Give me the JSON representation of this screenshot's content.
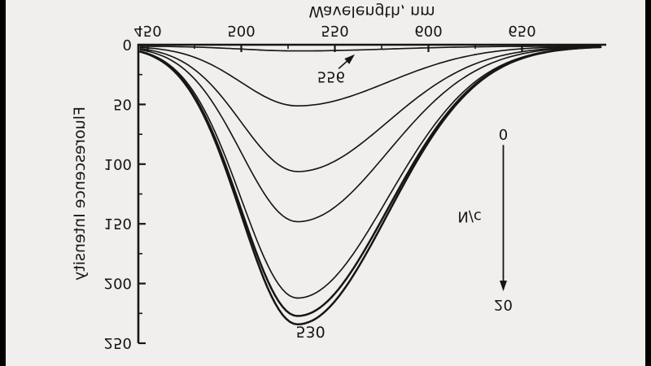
{
  "figure": {
    "background": "#f0efed",
    "ink": "#161616",
    "letterbox": "#000000"
  },
  "chart_data": {
    "type": "line",
    "title": "",
    "xlabel": "Wavelength, nm",
    "ylabel": "Fluorescence Intensity",
    "xlim": [
      445,
      695
    ],
    "ylim": [
      0,
      250
    ],
    "x_ticks": [
      450,
      500,
      550,
      600,
      650
    ],
    "x_minor_step": 25,
    "y_ticks": [
      0,
      50,
      100,
      150,
      200,
      250
    ],
    "y_minor_step": 25,
    "grid": false,
    "legend": false,
    "model": {
      "shape": "asymmetric-gaussian",
      "center_nm": 530,
      "sigma_left_nm": 30,
      "sigma_right_nm": 48,
      "baseline": 1.2
    },
    "series": [
      {
        "peak_intensity": 4
      },
      {
        "peak_intensity": 50
      },
      {
        "peak_intensity": 105
      },
      {
        "peak_intensity": 147
      },
      {
        "peak_intensity": 211
      },
      {
        "peak_intensity": 226
      },
      {
        "peak_intensity": 233
      }
    ],
    "annotations": {
      "peak_label": {
        "text": "530",
        "x_nm": 537,
        "intensity": 240
      },
      "shoulder_label": {
        "text": "556",
        "x_nm": 548,
        "intensity": 27,
        "arrow_from": [
          552,
          20
        ],
        "arrow_to": [
          560,
          9
        ]
      },
      "ratio_arrow": {
        "label": "N/c",
        "label_x_nm": 622,
        "label_intensity": 144,
        "x_nm": 640,
        "from_intensity": 84,
        "to_intensity": 205,
        "start_label": "0",
        "start_label_intensity": 75,
        "end_label": "20",
        "end_label_intensity": 218
      }
    }
  }
}
